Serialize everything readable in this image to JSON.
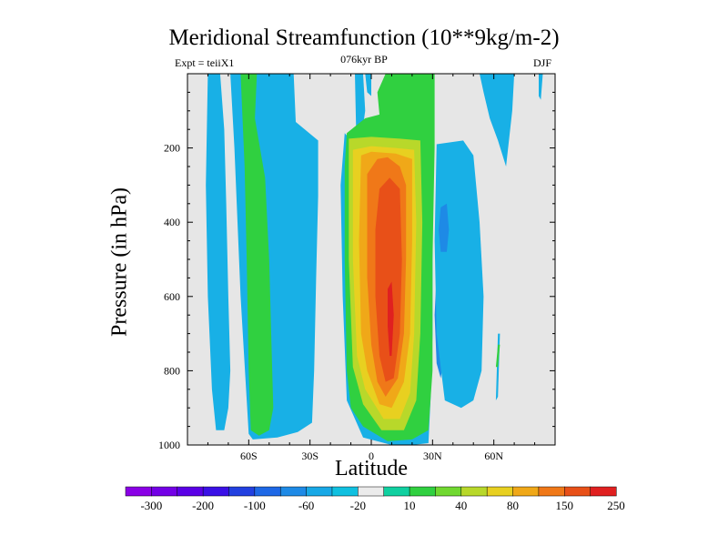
{
  "chart_data": {
    "type": "contour",
    "title": "Meridional Streamfunction (10**9kg/m-2)",
    "subtitle_left": "Expt = teiiX1",
    "subtitle_center": "076kyr BP",
    "subtitle_right": "DJF",
    "xlabel": "Latitude",
    "ylabel": "Pressure (in hPa)",
    "xlim": [
      -90,
      90
    ],
    "ylim": [
      1000,
      0
    ],
    "x_ticks": [
      {
        "value": -60,
        "label": "60S"
      },
      {
        "value": -30,
        "label": "30S"
      },
      {
        "value": 0,
        "label": "0"
      },
      {
        "value": 30,
        "label": "30N"
      },
      {
        "value": 60,
        "label": "60N"
      }
    ],
    "y_ticks": [
      {
        "value": 200,
        "label": "200"
      },
      {
        "value": 400,
        "label": "400"
      },
      {
        "value": 600,
        "label": "600"
      },
      {
        "value": 800,
        "label": "800"
      },
      {
        "value": 1000,
        "label": "1000"
      }
    ],
    "colorbar": {
      "colors": [
        "#8a00e6",
        "#7300e6",
        "#5a00e6",
        "#3a10e6",
        "#2240e0",
        "#1e68e6",
        "#1e8ae6",
        "#18a8e6",
        "#10c0e0",
        "#ebebeb",
        "#10d0a0",
        "#30d040",
        "#70d830",
        "#b8d82a",
        "#e8d020",
        "#f0a818",
        "#f07818",
        "#e85018",
        "#e02020"
      ],
      "labels": [
        "-300",
        "-200",
        "-100",
        "-60",
        "-20",
        "10",
        "40",
        "80",
        "150",
        "250"
      ],
      "label_slots": [
        1,
        3,
        5,
        7,
        9,
        11,
        13,
        15,
        17,
        19
      ]
    },
    "background_color": "#e6e6e6",
    "regions": [
      {
        "color": "#18b0e6",
        "points": [
          [
            -80,
            0
          ],
          [
            -74,
            0
          ],
          [
            -72,
            150
          ],
          [
            -71,
            350
          ],
          [
            -70,
            600
          ],
          [
            -69,
            800
          ],
          [
            -70,
            900
          ],
          [
            -72,
            960
          ],
          [
            -76,
            960
          ],
          [
            -78,
            850
          ],
          [
            -80,
            600
          ],
          [
            -81,
            300
          ]
        ]
      },
      {
        "color": "#18b0e6",
        "points": [
          [
            -71,
            0
          ],
          [
            -38,
            0
          ],
          [
            -37,
            130
          ],
          [
            -26,
            180
          ],
          [
            -26,
            330
          ],
          [
            -27,
            550
          ],
          [
            -28,
            800
          ],
          [
            -29,
            940
          ],
          [
            -36,
            965
          ],
          [
            -46,
            980
          ],
          [
            -58,
            985
          ],
          [
            -60,
            970
          ],
          [
            -64,
            600
          ],
          [
            -67,
            200
          ],
          [
            -69,
            0
          ]
        ]
      },
      {
        "color": "#30d040",
        "points": [
          [
            -64,
            0
          ],
          [
            -56,
            0
          ],
          [
            -57,
            120
          ],
          [
            -52,
            280
          ],
          [
            -50,
            500
          ],
          [
            -49,
            700
          ],
          [
            -48,
            900
          ],
          [
            -50,
            960
          ],
          [
            -55,
            975
          ],
          [
            -59,
            960
          ],
          [
            -60,
            800
          ],
          [
            -61,
            500
          ],
          [
            -62,
            250
          ]
        ]
      },
      {
        "color": "#18b0e6",
        "points": [
          [
            -8,
            0
          ],
          [
            -4,
            0
          ],
          [
            -3,
            100
          ],
          [
            -7,
            260
          ]
        ]
      },
      {
        "color": "#18b0e6",
        "points": [
          [
            -13,
            160
          ],
          [
            -5,
            210
          ],
          [
            20,
            210
          ],
          [
            30,
            180
          ],
          [
            30,
            300
          ],
          [
            30,
            700
          ],
          [
            29,
            880
          ],
          [
            28,
            995
          ],
          [
            20,
            1000
          ],
          [
            10,
            1000
          ],
          [
            -4,
            980
          ],
          [
            -12,
            880
          ],
          [
            -14,
            600
          ],
          [
            -15,
            300
          ]
        ]
      },
      {
        "color": "#30d040",
        "points": [
          [
            7,
            0
          ],
          [
            31,
            0
          ],
          [
            31,
            200
          ],
          [
            30,
            500
          ],
          [
            30,
            800
          ],
          [
            28,
            960
          ],
          [
            20,
            985
          ],
          [
            8,
            990
          ],
          [
            -4,
            950
          ],
          [
            -10,
            900
          ],
          [
            -12,
            800
          ],
          [
            -13,
            500
          ],
          [
            -13,
            250
          ],
          [
            -12,
            160
          ],
          [
            -3,
            120
          ],
          [
            4,
            110
          ],
          [
            3,
            50
          ]
        ]
      },
      {
        "color": "#b8d82a",
        "points": [
          [
            -11,
            175
          ],
          [
            0,
            170
          ],
          [
            14,
            175
          ],
          [
            24,
            180
          ],
          [
            25,
            400
          ],
          [
            24,
            700
          ],
          [
            22,
            880
          ],
          [
            16,
            960
          ],
          [
            5,
            960
          ],
          [
            -4,
            890
          ],
          [
            -9,
            790
          ],
          [
            -11,
            500
          ]
        ]
      },
      {
        "color": "#e8d020",
        "points": [
          [
            -9,
            205
          ],
          [
            0,
            195
          ],
          [
            12,
            200
          ],
          [
            21,
            205
          ],
          [
            22,
            400
          ],
          [
            21,
            700
          ],
          [
            19,
            860
          ],
          [
            14,
            930
          ],
          [
            6,
            930
          ],
          [
            -3,
            850
          ],
          [
            -7,
            760
          ],
          [
            -9,
            500
          ]
        ]
      },
      {
        "color": "#f0a818",
        "points": [
          [
            -5,
            220
          ],
          [
            0,
            210
          ],
          [
            12,
            215
          ],
          [
            20,
            230
          ],
          [
            20,
            450
          ],
          [
            19,
            700
          ],
          [
            16,
            830
          ],
          [
            10,
            900
          ],
          [
            4,
            890
          ],
          [
            -2,
            800
          ],
          [
            -5,
            700
          ],
          [
            -6,
            450
          ]
        ]
      },
      {
        "color": "#f07818",
        "points": [
          [
            -2,
            270
          ],
          [
            3,
            230
          ],
          [
            8,
            225
          ],
          [
            14,
            250
          ],
          [
            17,
            300
          ],
          [
            17,
            500
          ],
          [
            16,
            700
          ],
          [
            13,
            820
          ],
          [
            7,
            870
          ],
          [
            3,
            830
          ],
          [
            0,
            730
          ],
          [
            -2,
            550
          ]
        ]
      },
      {
        "color": "#e85018",
        "points": [
          [
            4,
            310
          ],
          [
            9,
            280
          ],
          [
            14,
            310
          ],
          [
            15,
            500
          ],
          [
            14,
            700
          ],
          [
            11,
            820
          ],
          [
            7,
            830
          ],
          [
            4,
            760
          ],
          [
            2,
            600
          ],
          [
            2,
            420
          ]
        ]
      },
      {
        "color": "#e02020",
        "points": [
          [
            8,
            580
          ],
          [
            10,
            560
          ],
          [
            11,
            650
          ],
          [
            10,
            760
          ],
          [
            9,
            760
          ],
          [
            8,
            680
          ]
        ]
      },
      {
        "color": "#1e8ae6",
        "points": [
          [
            32,
            540
          ],
          [
            35,
            520
          ],
          [
            36,
            620
          ],
          [
            36,
            750
          ],
          [
            34,
            820
          ],
          [
            32,
            780
          ],
          [
            31,
            650
          ]
        ]
      },
      {
        "color": "#18b0e6",
        "points": [
          [
            32,
            190
          ],
          [
            45,
            180
          ],
          [
            50,
            220
          ],
          [
            53,
            400
          ],
          [
            55,
            600
          ],
          [
            54,
            800
          ],
          [
            50,
            880
          ],
          [
            44,
            900
          ],
          [
            36,
            880
          ],
          [
            32,
            700
          ],
          [
            31,
            450
          ]
        ]
      },
      {
        "color": "#1e8ae6",
        "points": [
          [
            34,
            360
          ],
          [
            37,
            350
          ],
          [
            38,
            420
          ],
          [
            37,
            480
          ],
          [
            34,
            480
          ],
          [
            33,
            420
          ]
        ]
      },
      {
        "color": "#18b0e6",
        "points": [
          [
            53,
            0
          ],
          [
            70,
            0
          ],
          [
            69,
            100
          ],
          [
            66,
            250
          ],
          [
            62,
            180
          ],
          [
            58,
            120
          ],
          [
            55,
            50
          ]
        ]
      },
      {
        "color": "#18b0e6",
        "points": [
          [
            82,
            0
          ],
          [
            84,
            0
          ],
          [
            83,
            70
          ],
          [
            82,
            60
          ]
        ]
      },
      {
        "color": "#18b0e6",
        "points": [
          [
            -3,
            0
          ],
          [
            0,
            0
          ],
          [
            0,
            60
          ],
          [
            -2,
            50
          ]
        ]
      },
      {
        "color": "#18b0e6",
        "points": [
          [
            62,
            700
          ],
          [
            63,
            700
          ],
          [
            62,
            870
          ],
          [
            61,
            880
          ]
        ]
      },
      {
        "color": "#30d040",
        "points": [
          [
            62,
            730
          ],
          [
            63,
            730
          ],
          [
            62,
            790
          ],
          [
            61,
            790
          ]
        ]
      }
    ]
  }
}
